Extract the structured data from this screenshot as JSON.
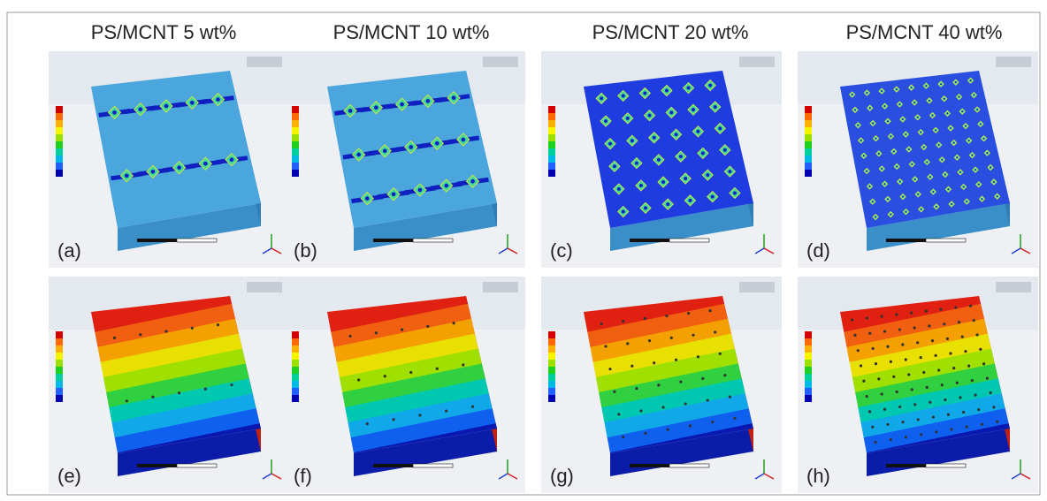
{
  "figure": {
    "headers": [
      "PS/MCNT 5 wt%",
      "PS/MCNT 10 wt%",
      "PS/MCNT 20 wt%",
      "PS/MCNT 40 wt%"
    ],
    "panels": [
      {
        "label": "(a)"
      },
      {
        "label": "(b)"
      },
      {
        "label": "(c)"
      },
      {
        "label": "(d)"
      },
      {
        "label": "(e)"
      },
      {
        "label": "(f)"
      },
      {
        "label": "(g)"
      },
      {
        "label": "(h)"
      }
    ]
  }
}
